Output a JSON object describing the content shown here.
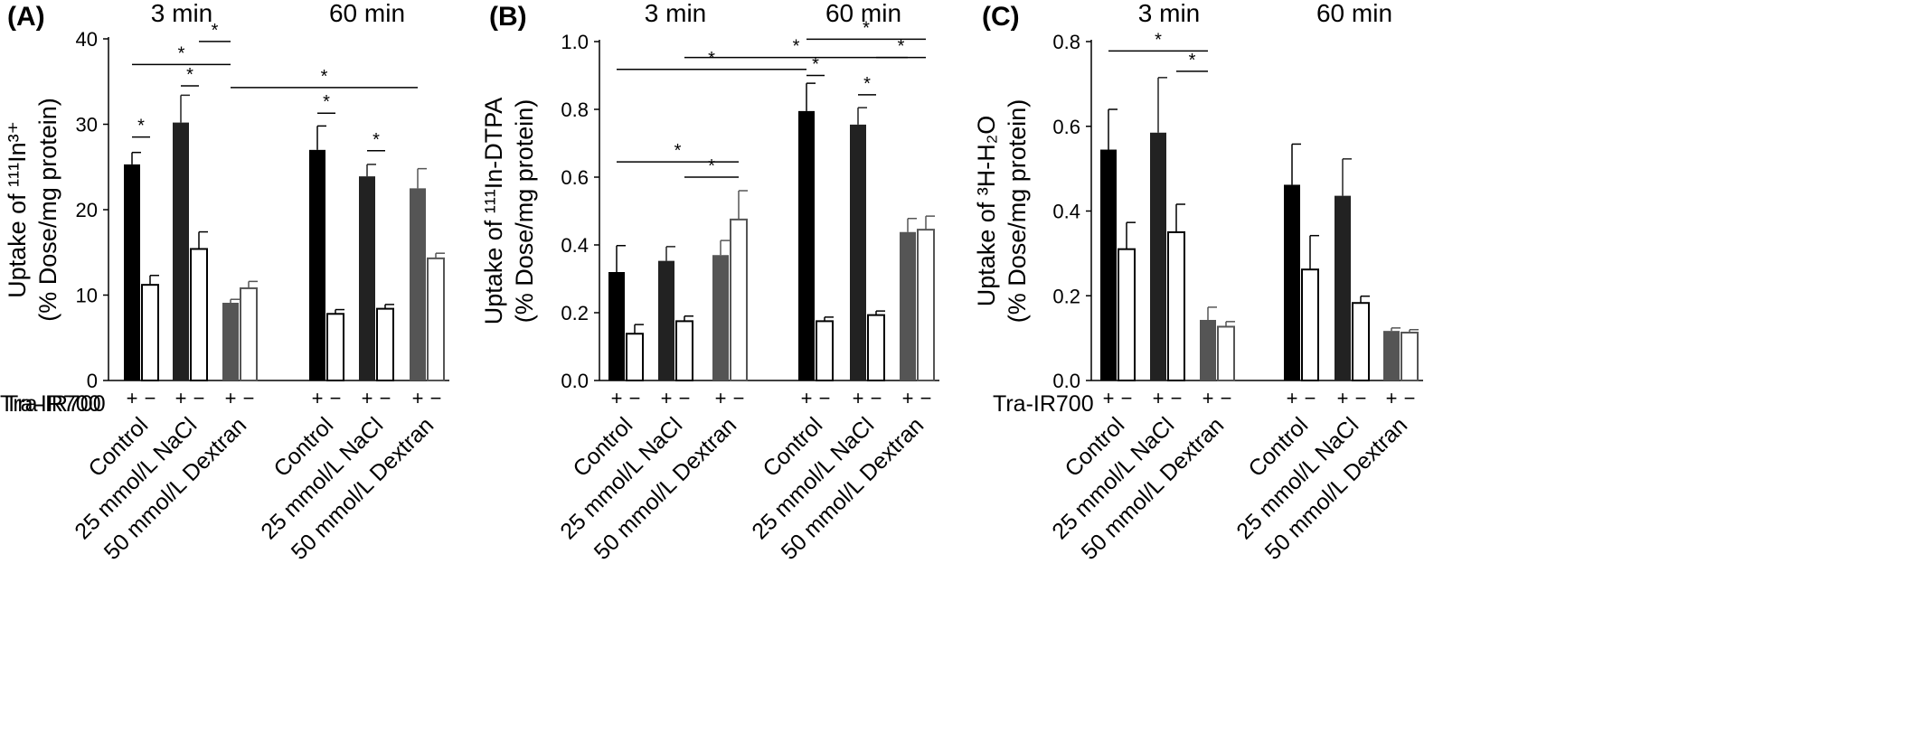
{
  "colors": {
    "plus_control": "#000000",
    "plus_nacl": "#222222",
    "plus_dextran": "#555555",
    "minus_fill": "#ffffff",
    "minus_stroke_dark": "#000000",
    "minus_stroke_dextran": "#555555"
  },
  "row_label": "Tra-IR700",
  "sign_labels": {
    "plus": "+",
    "minus": "−"
  },
  "star_label": "*",
  "chart_data": [
    {
      "type": "bar",
      "panel_letter": "(A)",
      "ylabel_line1": "Uptake of ¹¹¹In³⁺",
      "ylabel_line2": "(% Dose/mg protein)",
      "ylim": [
        0,
        40
      ],
      "yticks": [
        "0",
        "10",
        "20",
        "30",
        "40"
      ],
      "ytick_values": [
        0,
        10,
        20,
        30,
        40
      ],
      "groups": [
        "3 min",
        "60 min"
      ],
      "categories": [
        "Control",
        "25 mmol/L NaCl",
        "50 mmol/L Dextran"
      ],
      "series": [
        {
          "group": "3 min",
          "values": [
            [
              25.3,
              11.2
            ],
            [
              30.2,
              15.4
            ],
            [
              9.1,
              10.8
            ]
          ],
          "errors": [
            [
              1.4,
              1.1
            ],
            [
              3.2,
              2.0
            ],
            [
              0.4,
              0.8
            ]
          ]
        },
        {
          "group": "60 min",
          "values": [
            [
              27.0,
              7.8
            ],
            [
              23.9,
              8.4
            ],
            [
              22.5,
              14.3
            ]
          ],
          "errors": [
            [
              2.8,
              0.5
            ],
            [
              1.4,
              0.5
            ],
            [
              2.3,
              0.6
            ]
          ]
        }
      ],
      "significance": [
        {
          "from": [
            0,
            0,
            0
          ],
          "to": [
            0,
            0,
            1
          ],
          "y": 28.5
        },
        {
          "from": [
            0,
            1,
            0
          ],
          "to": [
            0,
            1,
            1
          ],
          "y": 34.5
        },
        {
          "from": [
            0,
            0,
            0
          ],
          "to": [
            0,
            2,
            0
          ],
          "y": 37.0
        },
        {
          "from": [
            0,
            1,
            1
          ],
          "to": [
            0,
            2,
            0
          ],
          "y": 39.7
        },
        {
          "from": [
            0,
            2,
            0
          ],
          "to": [
            1,
            2,
            0
          ],
          "y": 34.3
        },
        {
          "from": [
            1,
            0,
            0
          ],
          "to": [
            1,
            0,
            1
          ],
          "y": 31.3
        },
        {
          "from": [
            1,
            1,
            0
          ],
          "to": [
            1,
            1,
            1
          ],
          "y": 26.9
        }
      ]
    },
    {
      "type": "bar",
      "panel_letter": "(B)",
      "ylabel_line1": "Uptake of ¹¹¹In-DTPA",
      "ylabel_line2": "(% Dose/mg protein)",
      "ylim": [
        0,
        1.0
      ],
      "yticks": [
        "0.0",
        "0.2",
        "0.4",
        "0.6",
        "0.8",
        "1.0"
      ],
      "ytick_values": [
        0,
        0.2,
        0.4,
        0.6,
        0.8,
        1.0
      ],
      "groups": [
        "3 min",
        "60 min"
      ],
      "categories": [
        "Control",
        "25 mmol/L NaCl",
        "50 mmol/L Dextran"
      ],
      "series": [
        {
          "group": "3 min",
          "values": [
            [
              0.32,
              0.138
            ],
            [
              0.353,
              0.175
            ],
            [
              0.37,
              0.475
            ]
          ],
          "errors": [
            [
              0.078,
              0.027
            ],
            [
              0.042,
              0.015
            ],
            [
              0.043,
              0.085
            ]
          ]
        },
        {
          "group": "60 min",
          "values": [
            [
              0.795,
              0.175
            ],
            [
              0.755,
              0.193
            ],
            [
              0.438,
              0.445
            ]
          ],
          "errors": [
            [
              0.082,
              0.012
            ],
            [
              0.05,
              0.012
            ],
            [
              0.04,
              0.04
            ]
          ]
        }
      ],
      "significance": [
        {
          "from": [
            0,
            0,
            0
          ],
          "to": [
            0,
            2,
            1
          ],
          "y": 0.645
        },
        {
          "from": [
            0,
            1,
            1
          ],
          "to": [
            0,
            2,
            1
          ],
          "y": 0.6
        },
        {
          "from": [
            0,
            0,
            0
          ],
          "to": [
            1,
            0,
            0
          ],
          "y": 0.918
        },
        {
          "from": [
            0,
            1,
            1
          ],
          "to": [
            1,
            2,
            0
          ],
          "y": 0.953
        },
        {
          "from": [
            1,
            0,
            0
          ],
          "to": [
            1,
            0,
            1
          ],
          "y": 0.9
        },
        {
          "from": [
            1,
            0,
            0
          ],
          "to": [
            1,
            2,
            1
          ],
          "y": 1.007
        },
        {
          "from": [
            1,
            1,
            1
          ],
          "to": [
            1,
            2,
            1
          ],
          "y": 0.953
        },
        {
          "from": [
            1,
            1,
            0
          ],
          "to": [
            1,
            1,
            1
          ],
          "y": 0.843
        }
      ]
    },
    {
      "type": "bar",
      "panel_letter": "(C)",
      "ylabel_line1": "Uptake of ³H-H₂O",
      "ylabel_line2": "(% Dose/mg protein)",
      "ylim": [
        0,
        0.8
      ],
      "yticks": [
        "0.0",
        "0.2",
        "0.4",
        "0.6",
        "0.8"
      ],
      "ytick_values": [
        0,
        0.2,
        0.4,
        0.6,
        0.8
      ],
      "groups": [
        "3 min",
        "60 min"
      ],
      "categories": [
        "Control",
        "25 mmol/L NaCl",
        "50 mmol/L Dextran"
      ],
      "series": [
        {
          "group": "3 min",
          "values": [
            [
              0.545,
              0.31
            ],
            [
              0.585,
              0.35
            ],
            [
              0.143,
              0.127
            ]
          ],
          "errors": [
            [
              0.095,
              0.063
            ],
            [
              0.13,
              0.066
            ],
            [
              0.03,
              0.012
            ]
          ]
        },
        {
          "group": "60 min",
          "values": [
            [
              0.462,
              0.262
            ],
            [
              0.436,
              0.183
            ],
            [
              0.117,
              0.113
            ]
          ],
          "errors": [
            [
              0.096,
              0.08
            ],
            [
              0.087,
              0.016
            ],
            [
              0.007,
              0.007
            ]
          ]
        }
      ],
      "significance": [
        {
          "from": [
            0,
            0,
            0
          ],
          "to": [
            0,
            2,
            0
          ],
          "y": 0.778
        },
        {
          "from": [
            0,
            1,
            1
          ],
          "to": [
            0,
            2,
            0
          ],
          "y": 0.73
        }
      ]
    }
  ]
}
